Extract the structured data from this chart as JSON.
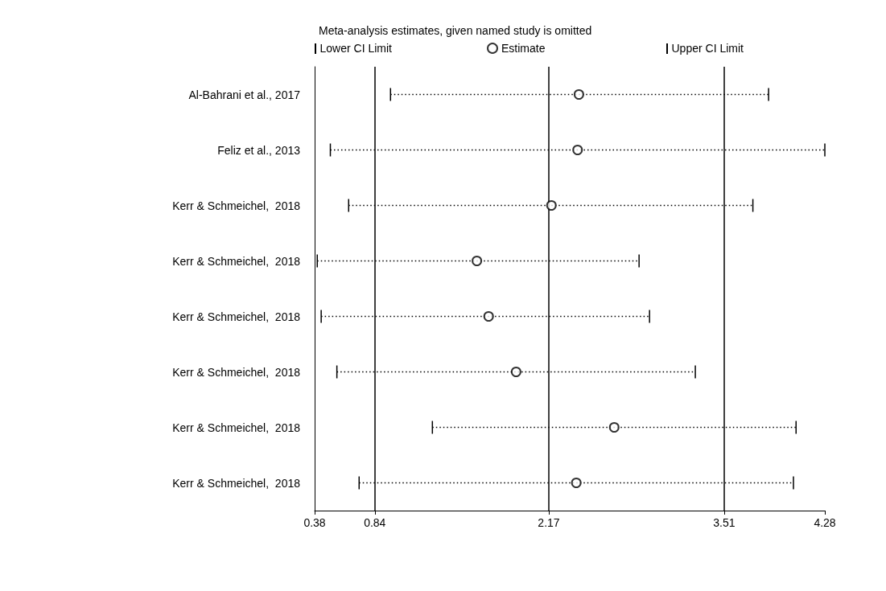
{
  "chart_data": {
    "type": "scatter",
    "orientation": "horizontal",
    "title": "Meta-analysis estimates, given named study is omitted",
    "categories": [
      "Al-Bahrani et al., 2017",
      "Feliz et al., 2013",
      "Kerr & Schmeichel,  2018",
      "Kerr & Schmeichel,  2018",
      "Kerr & Schmeichel,  2018",
      "Kerr & Schmeichel,  2018",
      "Kerr & Schmeichel,  2018",
      "Kerr & Schmeichel,  2018"
    ],
    "series": [
      {
        "name": "Estimate",
        "color": "#000000",
        "marker": "circle",
        "values": [
          2.4,
          2.39,
          2.19,
          1.62,
          1.71,
          1.92,
          2.67,
          2.38
        ],
        "errors": [
          [
            0.96,
            3.85
          ],
          [
            0.5,
            4.28
          ],
          [
            0.64,
            3.73
          ],
          [
            0.4,
            2.86
          ],
          [
            0.43,
            2.94
          ],
          [
            0.55,
            3.29
          ],
          [
            1.28,
            4.06
          ],
          [
            0.72,
            4.04
          ]
        ]
      }
    ],
    "annotations": [
      "Lower CI Limit",
      "Upper CI Limit"
    ],
    "line_style": "dotted",
    "xlim": [
      0.38,
      4.28
    ],
    "xticks": [
      0.38,
      0.84,
      2.17,
      3.51,
      4.28
    ],
    "ref_lines": [
      {
        "axis": "x",
        "value": 0.84,
        "color": "#000000"
      },
      {
        "axis": "x",
        "value": 2.17,
        "color": "#000000"
      },
      {
        "axis": "x",
        "value": 3.51,
        "color": "#000000"
      }
    ],
    "legend": "top"
  }
}
